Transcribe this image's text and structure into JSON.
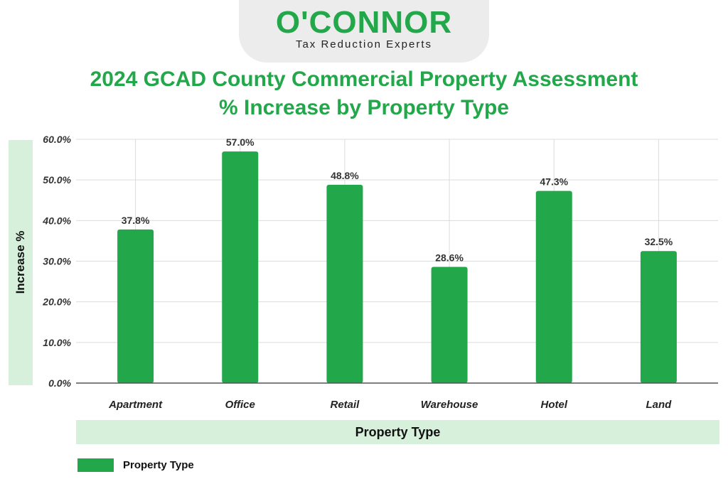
{
  "brand": {
    "name": "O'CONNOR",
    "tagline": "Tax Reduction Experts"
  },
  "chart_data": {
    "type": "bar",
    "title": "2024 GCAD County Commercial Property Assessment % Increase by Property Type",
    "xlabel": "Property Type",
    "ylabel": "Increase %",
    "categories": [
      "Apartment",
      "Office",
      "Retail",
      "Warehouse",
      "Hotel",
      "Land"
    ],
    "series": [
      {
        "name": "Property Type",
        "values": [
          37.8,
          57.0,
          48.8,
          28.6,
          47.3,
          32.5
        ],
        "labels": [
          "37.8%",
          "57.0%",
          "48.8%",
          "28.6%",
          "47.3%",
          "32.5%"
        ]
      }
    ],
    "ylim": [
      0,
      60
    ],
    "yticks": [
      "0.0%",
      "10.0%",
      "20.0%",
      "30.0%",
      "40.0%",
      "50.0%",
      "60.0%"
    ],
    "grid": true,
    "legend_position": "bottom-left",
    "colors": {
      "bar": "#22a84a",
      "title": "#22a84a",
      "label_band": "#d6f0dc",
      "grid": "#dcdcdc"
    }
  }
}
